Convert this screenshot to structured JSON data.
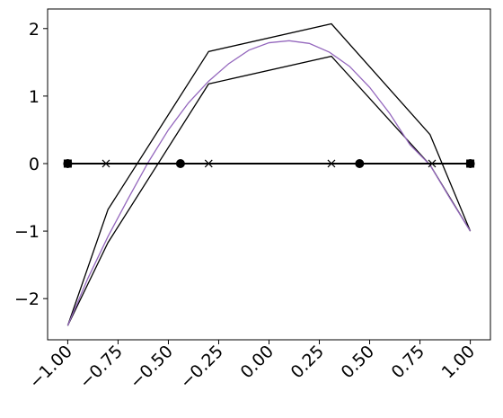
{
  "chart_data": {
    "type": "line",
    "xlim": [
      -1.1,
      1.1
    ],
    "ylim": [
      -2.61,
      2.29
    ],
    "xticks": [
      {
        "value": -1,
        "label": "−1.00"
      },
      {
        "value": -0.75,
        "label": "−0.75"
      },
      {
        "value": -0.5,
        "label": "−0.50"
      },
      {
        "value": -0.25,
        "label": "−0.25"
      },
      {
        "value": 0,
        "label": "0.00"
      },
      {
        "value": 0.25,
        "label": "0.25"
      },
      {
        "value": 0.5,
        "label": "0.50"
      },
      {
        "value": 0.75,
        "label": "0.75"
      },
      {
        "value": 1,
        "label": "1.00"
      }
    ],
    "yticks": [
      {
        "value": -2,
        "label": "−2"
      },
      {
        "value": -1,
        "label": "−1"
      },
      0,
      1,
      2
    ],
    "series": [
      {
        "color": "#000000",
        "marker": "none",
        "x": [
          -1,
          -0.8,
          -0.3,
          0.31,
          0.8,
          1
        ],
        "values": [
          -2.4,
          -0.68,
          1.66,
          2.07,
          0.43,
          -1
        ]
      },
      {
        "color": "#000000",
        "marker": "none",
        "x": [
          -1,
          -0.8,
          -0.3,
          0.31,
          0.8,
          1
        ],
        "values": [
          -2.4,
          -1.17,
          1.18,
          1.59,
          -0.02,
          -1
        ]
      },
      {
        "color": "#9467bd",
        "marker": "none",
        "x": [
          -1,
          -0.9,
          -0.8,
          -0.7,
          -0.6,
          -0.5,
          -0.4,
          -0.3,
          -0.2,
          -0.1,
          0,
          0.1,
          0.2,
          0.3,
          0.4,
          0.5,
          0.6,
          0.7,
          0.8,
          0.9,
          1
        ],
        "values": [
          -2.4,
          -1.7,
          -1.08,
          -0.52,
          0.02,
          0.5,
          0.9,
          1.22,
          1.48,
          1.68,
          1.79,
          1.82,
          1.78,
          1.65,
          1.44,
          1.13,
          0.74,
          0.28,
          -0.02,
          -0.52,
          -1
        ]
      },
      {
        "color": "#000000",
        "marker": "none",
        "x": [
          -1,
          1
        ],
        "values": [
          0,
          0
        ]
      },
      {
        "color": "#000000",
        "marker": "x",
        "x": [
          -0.81,
          -0.3,
          0.31,
          0.81
        ],
        "values": [
          0,
          0,
          0,
          0
        ]
      },
      {
        "color": "#000000",
        "marker": "o",
        "x": [
          -1,
          -0.44,
          0.45,
          1
        ],
        "values": [
          0,
          0,
          0,
          0
        ]
      },
      {
        "color": "#000000",
        "marker": "s",
        "x": [
          -1,
          1
        ],
        "values": [
          0,
          0
        ]
      }
    ]
  }
}
